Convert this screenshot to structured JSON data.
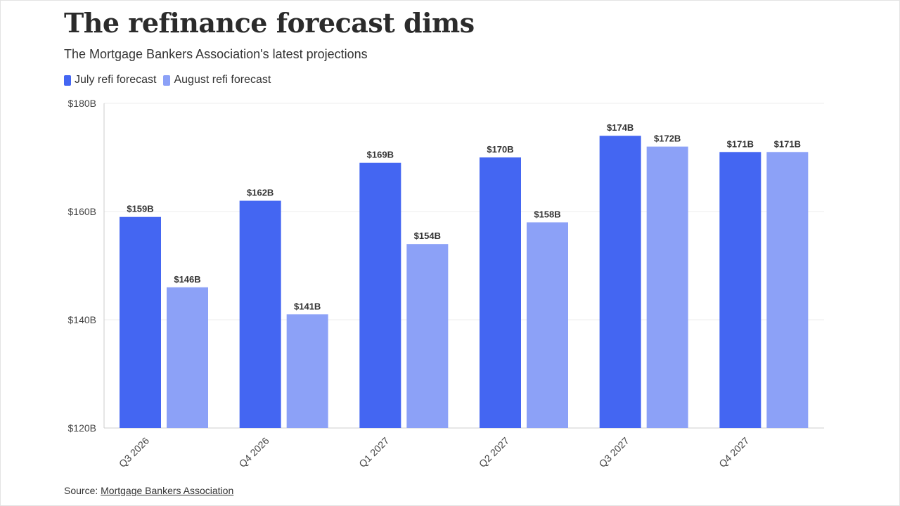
{
  "header": {
    "title": "The refinance forecast dims",
    "subtitle": "The Mortgage Bankers Association's latest projections"
  },
  "legend": {
    "items": [
      {
        "label": "July refi forecast",
        "color": "#4466f2"
      },
      {
        "label": "August refi forecast",
        "color": "#8ca1f7"
      }
    ]
  },
  "source": {
    "prefix": "Source: ",
    "link_text": "Mortgage Bankers Association"
  },
  "chart_data": {
    "type": "bar",
    "categories": [
      "Q3 2026",
      "Q4 2026",
      "Q1 2027",
      "Q2 2027",
      "Q3 2027",
      "Q4 2027"
    ],
    "series": [
      {
        "name": "July refi forecast",
        "color": "#4466f2",
        "values": [
          159,
          162,
          169,
          170,
          174,
          171
        ],
        "labels": [
          "$159B",
          "$162B",
          "$169B",
          "$170B",
          "$174B",
          "$171B"
        ]
      },
      {
        "name": "August refi forecast",
        "color": "#8ca1f7",
        "values": [
          146,
          141,
          154,
          158,
          172,
          171
        ],
        "labels": [
          "$146B",
          "$141B",
          "$154B",
          "$158B",
          "$172B",
          "$171B"
        ]
      }
    ],
    "ylim": [
      120,
      180
    ],
    "yticks": [
      120,
      140,
      160,
      180
    ],
    "ytick_labels": [
      "$120B",
      "$140B",
      "$160B",
      "$180B"
    ],
    "grid": true,
    "legend_position": "top-left"
  }
}
